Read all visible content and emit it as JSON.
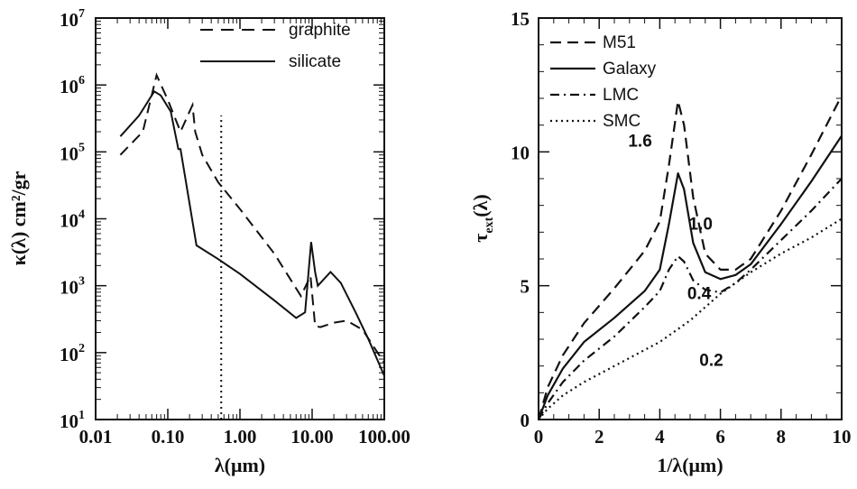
{
  "chart_data": [
    {
      "type": "line",
      "xlabel": "λ(μm)",
      "ylabel": "κ(λ) cm²/gr",
      "xscale": "log",
      "yscale": "log",
      "xlim": [
        0.01,
        100
      ],
      "ylim": [
        10,
        10000000
      ],
      "x_tick_labels": [
        "0.01",
        "0.10",
        "1.00",
        "10.00",
        "100.00"
      ],
      "x_tick_values": [
        0.01,
        0.1,
        1,
        10,
        100
      ],
      "y_tick_exponents": [
        1,
        2,
        3,
        4,
        5,
        6,
        7
      ],
      "y_tick_base": "10",
      "grid": false,
      "legend_position": "top-right",
      "series": [
        {
          "name": "graphite",
          "style": "dashed",
          "x": [
            0.022,
            0.045,
            0.07,
            0.1,
            0.15,
            0.2,
            0.22,
            0.24,
            0.3,
            0.5,
            1.0,
            3.0,
            7.0,
            9.5,
            11.0,
            13.0,
            20.0,
            30.0,
            50.0,
            100.0
          ],
          "y": [
            90000,
            200000,
            1400000,
            600000,
            200000,
            400000,
            500000,
            200000,
            90000,
            35000,
            14000,
            3000,
            700,
            1400,
            250,
            240,
            280,
            300,
            220,
            70
          ]
        },
        {
          "name": "silicate",
          "style": "solid",
          "x": [
            0.022,
            0.04,
            0.065,
            0.08,
            0.11,
            0.14,
            0.15,
            0.25,
            0.5,
            1.0,
            3.0,
            6.0,
            8.0,
            9.7,
            11.0,
            12.0,
            18.0,
            25.0,
            40.0,
            60.0,
            100.0
          ],
          "y": [
            170000,
            350000,
            800000,
            700000,
            400000,
            110000,
            110000,
            4000,
            2500,
            1500,
            600,
            330,
            400,
            4500,
            1600,
            1000,
            1600,
            1100,
            400,
            160,
            45
          ]
        }
      ],
      "annotations": [
        {
          "type": "vertical-dotted-line",
          "x": 0.55,
          "y_range": [
            10,
            350000
          ]
        }
      ]
    },
    {
      "type": "line",
      "xlabel": "1/λ(μm)",
      "ylabel": "τext(λ)",
      "ylabel_main": "τ",
      "ylabel_sub": "ext",
      "ylabel_tail": "(λ)",
      "xlim": [
        0,
        10
      ],
      "ylim": [
        0,
        15
      ],
      "x_tick_labels": [
        "0",
        "2",
        "4",
        "6",
        "8",
        "10"
      ],
      "y_tick_labels": [
        "0",
        "5",
        "10",
        "15"
      ],
      "grid": false,
      "legend_position": "top-left",
      "series": [
        {
          "name": "M51",
          "style": "dashed",
          "x": [
            0,
            0.3,
            0.8,
            1.5,
            2.5,
            3.5,
            4.0,
            4.3,
            4.6,
            4.8,
            5.1,
            5.5,
            6.0,
            6.5,
            7.0,
            8.0,
            9.0,
            10.0
          ],
          "y": [
            0,
            1.2,
            2.4,
            3.6,
            4.9,
            6.3,
            7.4,
            9.5,
            11.9,
            11.0,
            8.3,
            6.2,
            5.6,
            5.6,
            6.0,
            7.8,
            9.9,
            12.1
          ]
        },
        {
          "name": "Galaxy",
          "style": "solid",
          "x": [
            0,
            0.3,
            0.8,
            1.5,
            2.5,
            3.5,
            4.0,
            4.3,
            4.6,
            4.8,
            5.1,
            5.5,
            6.0,
            6.5,
            7.0,
            8.0,
            9.0,
            10.0
          ],
          "y": [
            0,
            0.9,
            1.9,
            2.9,
            3.8,
            4.8,
            5.6,
            7.3,
            9.2,
            8.6,
            6.6,
            5.5,
            5.25,
            5.4,
            5.8,
            7.3,
            8.9,
            10.6
          ]
        },
        {
          "name": "LMC",
          "style": "dash-dot",
          "x": [
            0,
            0.3,
            0.8,
            1.5,
            2.5,
            3.5,
            4.0,
            4.3,
            4.6,
            4.8,
            5.1,
            5.5,
            6.0,
            6.5,
            7.0,
            8.0,
            9.0,
            10.0
          ],
          "y": [
            0,
            0.6,
            1.4,
            2.2,
            3.1,
            4.2,
            4.8,
            5.6,
            6.1,
            5.9,
            5.2,
            4.85,
            4.75,
            5.1,
            5.6,
            6.7,
            7.8,
            9.0
          ]
        },
        {
          "name": "SMC",
          "style": "dotted",
          "x": [
            0,
            0.3,
            0.8,
            1.5,
            2.5,
            3.5,
            4.0,
            4.5,
            5.0,
            5.5,
            6.0,
            6.5,
            7.0,
            8.0,
            9.0,
            10.0
          ],
          "y": [
            0,
            0.4,
            0.9,
            1.4,
            2.0,
            2.6,
            2.9,
            3.3,
            3.7,
            4.2,
            4.7,
            5.1,
            5.5,
            6.2,
            6.8,
            7.5
          ]
        }
      ],
      "annotations": [
        {
          "text": "1.6",
          "x": 3.35,
          "y": 10.2
        },
        {
          "text": "1.0",
          "x": 5.35,
          "y": 7.1
        },
        {
          "text": "0.4",
          "x": 5.3,
          "y": 4.5
        },
        {
          "text": "0.2",
          "x": 5.7,
          "y": 2.0
        }
      ]
    }
  ]
}
